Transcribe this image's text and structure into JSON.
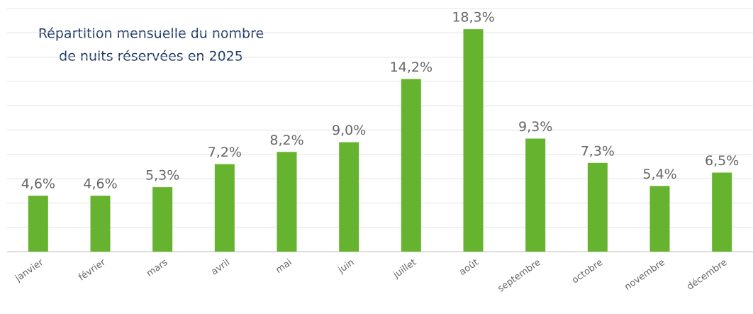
{
  "chart_data": {
    "type": "bar",
    "title": [
      "Répartition mensuelle du nombre",
      "de nuits réservées en 2025"
    ],
    "categories": [
      "janvier",
      "février",
      "mars",
      "avril",
      "mai",
      "juin",
      "juillet",
      "août",
      "septembre",
      "octobre",
      "novembre",
      "décembre"
    ],
    "values": [
      4.6,
      4.6,
      5.3,
      7.2,
      8.2,
      9.0,
      14.2,
      18.3,
      9.3,
      7.3,
      5.4,
      6.5
    ],
    "value_labels": [
      "4,6%",
      "4,6%",
      "5,3%",
      "7,2%",
      "8,2%",
      "9,0%",
      "14,2%",
      "18,3%",
      "9,3%",
      "7,3%",
      "5,4%",
      "6,5%"
    ],
    "color": "#65b32e",
    "ylim": [
      0,
      20
    ],
    "yticks": [
      0,
      2,
      4,
      6,
      8,
      10,
      12,
      14,
      16,
      18,
      20
    ],
    "grid": true
  }
}
